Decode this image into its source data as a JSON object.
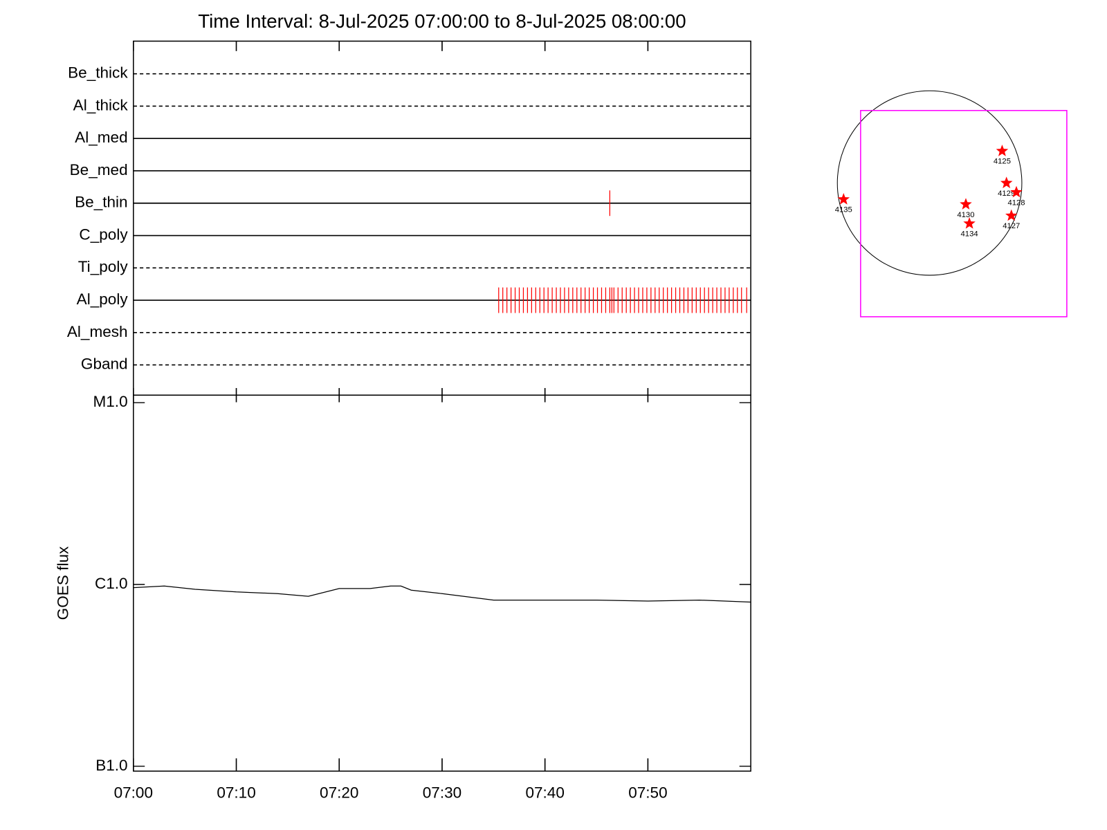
{
  "chart_data": [
    {
      "type": "event",
      "title": "Time Interval:  8-Jul-2025 07:00:00 to  8-Jul-2025 08:00:00",
      "categories": [
        "Be_thick",
        "Al_thick",
        "Al_med",
        "Be_med",
        "Be_thin",
        "C_poly",
        "Ti_poly",
        "Al_poly",
        "Al_mesh",
        "Gband"
      ],
      "line_styles": [
        "dashed",
        "dashed",
        "solid",
        "solid",
        "solid",
        "solid",
        "dashed",
        "solid",
        "dashed",
        "dashed"
      ],
      "events": [
        [],
        [],
        [],
        [],
        [
          46.3
        ],
        [],
        [],
        [
          35.5,
          35.9,
          36.3,
          36.7,
          37.1,
          37.5,
          37.9,
          38.3,
          38.7,
          39.1,
          39.5,
          39.9,
          40.3,
          40.7,
          41.1,
          41.5,
          41.9,
          42.3,
          42.7,
          43.1,
          43.5,
          43.9,
          44.3,
          44.7,
          45.1,
          45.5,
          45.9,
          46.3,
          46.5,
          46.7,
          47.1,
          47.5,
          47.9,
          48.3,
          48.7,
          49.1,
          49.5,
          49.9,
          50.3,
          50.7,
          51.1,
          51.5,
          51.9,
          52.3,
          52.7,
          53.1,
          53.5,
          53.9,
          54.3,
          54.7,
          55.1,
          55.5,
          55.9,
          56.3,
          56.7,
          57.1,
          57.5,
          57.9,
          58.3,
          58.7,
          59.1,
          59.6
        ],
        [],
        []
      ],
      "event_color": "#ff0000",
      "xlim": [
        0,
        60
      ]
    },
    {
      "type": "line",
      "ylabel": "GOES flux",
      "x": [
        0,
        3,
        6,
        10,
        14,
        17,
        20,
        23,
        25,
        26,
        27,
        30,
        35,
        40,
        45,
        50,
        55,
        60
      ],
      "values": [
        9.6e-07,
        9.8e-07,
        9.4e-07,
        9.1e-07,
        8.9e-07,
        8.6e-07,
        9.5e-07,
        9.5e-07,
        9.8e-07,
        9.8e-07,
        9.3e-07,
        8.9e-07,
        8.2e-07,
        8.2e-07,
        8.2e-07,
        8.1e-07,
        8.2e-07,
        8e-07
      ],
      "color": "#000000",
      "log_scale": true,
      "xlim": [
        0,
        60
      ],
      "xticks": [
        {
          "value": 0,
          "label": "07:00"
        },
        {
          "value": 10,
          "label": "07:10"
        },
        {
          "value": 20,
          "label": "07:20"
        },
        {
          "value": 30,
          "label": "07:30"
        },
        {
          "value": 40,
          "label": "07:40"
        },
        {
          "value": 50,
          "label": "07:50"
        }
      ],
      "ylim": [
        9.4e-08,
        1.1e-05
      ],
      "yticks": [
        {
          "value": 1e-07,
          "label": "B1.0"
        },
        {
          "value": 1e-06,
          "label": "C1.0"
        },
        {
          "value": 1e-05,
          "label": "M1.0"
        }
      ]
    },
    {
      "type": "map",
      "radius": 960,
      "fov": {
        "x": [
          -718,
          1428
        ],
        "y": [
          -1392,
          755
        ]
      },
      "fov_color": "#ff00ff",
      "labels": [
        "4125",
        "4129",
        "4128",
        "4130",
        "4134",
        "4127",
        "4135"
      ],
      "x": [
        755,
        800,
        903,
        377,
        414,
        851,
        -895
      ],
      "values": [
        333,
        0,
        -96,
        -222,
        -422,
        -340,
        -170
      ],
      "color": "#ff0000"
    }
  ]
}
